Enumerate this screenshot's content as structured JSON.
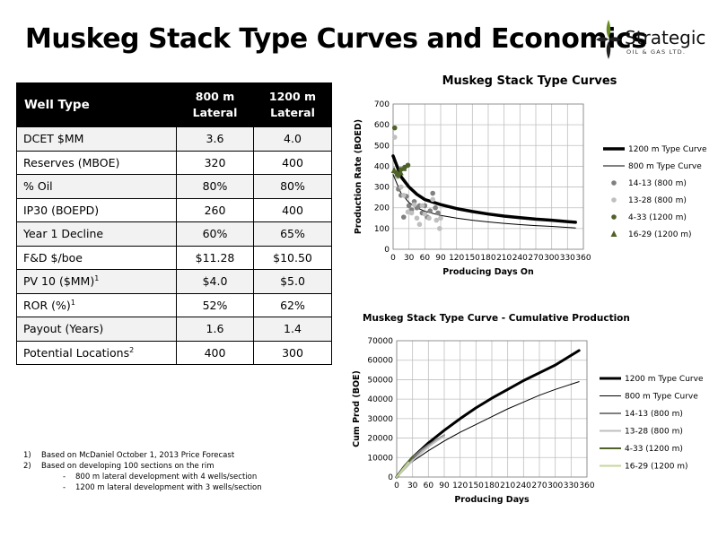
{
  "page_title": "Muskeg Stack Type Curves and Economics",
  "logo": {
    "word": "Strategic",
    "sub": "OIL & GAS LTD."
  },
  "table": {
    "headers": [
      {
        "line1": "Well Type",
        "line2": ""
      },
      {
        "line1": "800 m",
        "line2": "Lateral"
      },
      {
        "line1": "1200 m",
        "line2": "Lateral"
      }
    ],
    "rows": [
      {
        "label": "DCET $MM",
        "sup": "",
        "v800": "3.6",
        "v1200": "4.0"
      },
      {
        "label": "Reserves (MBOE)",
        "sup": "",
        "v800": "320",
        "v1200": "400"
      },
      {
        "label": "% Oil",
        "sup": "",
        "v800": "80%",
        "v1200": "80%"
      },
      {
        "label": "IP30 (BOEPD)",
        "sup": "",
        "v800": "260",
        "v1200": "400"
      },
      {
        "label": "Year 1 Decline",
        "sup": "",
        "v800": "60%",
        "v1200": "65%"
      },
      {
        "label": "F&D $/boe",
        "sup": "",
        "v800": "$11.28",
        "v1200": "$10.50"
      },
      {
        "label": "PV 10 ($MM)",
        "sup": "1",
        "v800": "$4.0",
        "v1200": "$5.0"
      },
      {
        "label": "ROR (%)",
        "sup": "1",
        "v800": "52%",
        "v1200": "62%"
      },
      {
        "label": "Payout (Years)",
        "sup": "",
        "v800": "1.6",
        "v1200": "1.4"
      },
      {
        "label": "Potential Locations",
        "sup": "2",
        "v800": "400",
        "v1200": "300"
      }
    ]
  },
  "notes": {
    "n1_num": "1)",
    "n1": "Based on McDaniel October 1, 2013 Price Forecast",
    "n2_num": "2)",
    "n2": "Based on developing 100 sections on the rim",
    "s_dash": "-",
    "s1": "800 m lateral development with 4 wells/section",
    "s2": "1200 m lateral development with 3 wells/section"
  },
  "chart_data": [
    {
      "type": "scatter",
      "title": "Muskeg Stack Type Curves",
      "xlabel": "Producing Days On",
      "ylabel": "Production Rate (BOED)",
      "xlim": [
        0,
        360
      ],
      "ylim": [
        0,
        700
      ],
      "xticks": [
        0,
        30,
        60,
        90,
        120,
        150,
        180,
        210,
        240,
        270,
        300,
        330,
        360
      ],
      "yticks": [
        0,
        100,
        200,
        300,
        400,
        500,
        600,
        700
      ],
      "grid": true,
      "legend": "right",
      "series": [
        {
          "name": "1200 m Type Curve",
          "kind": "line",
          "color": "#000000",
          "width": 3.5,
          "points": [
            [
              0,
              450
            ],
            [
              15,
              350
            ],
            [
              30,
              300
            ],
            [
              45,
              265
            ],
            [
              60,
              240
            ],
            [
              90,
              215
            ],
            [
              120,
              196
            ],
            [
              150,
              182
            ],
            [
              180,
              170
            ],
            [
              210,
              160
            ],
            [
              240,
              152
            ],
            [
              270,
              145
            ],
            [
              300,
              140
            ],
            [
              345,
              130
            ]
          ]
        },
        {
          "name": "800 m Type Curve",
          "kind": "line",
          "color": "#000000",
          "width": 1,
          "points": [
            [
              0,
              360
            ],
            [
              15,
              270
            ],
            [
              30,
              225
            ],
            [
              45,
              200
            ],
            [
              60,
              183
            ],
            [
              90,
              163
            ],
            [
              120,
              150
            ],
            [
              150,
              140
            ],
            [
              180,
              132
            ],
            [
              210,
              125
            ],
            [
              240,
              119
            ],
            [
              270,
              114
            ],
            [
              300,
              110
            ],
            [
              345,
              103
            ]
          ]
        },
        {
          "name": "14-13 (800 m)",
          "kind": "marker",
          "marker": "circle",
          "color": "#808080",
          "points": [
            [
              10,
              290
            ],
            [
              15,
              260
            ],
            [
              20,
              155
            ],
            [
              25,
              255
            ],
            [
              30,
              210
            ],
            [
              35,
              190
            ],
            [
              40,
              230
            ],
            [
              45,
              200
            ],
            [
              50,
              210
            ],
            [
              55,
              175
            ],
            [
              60,
              210
            ],
            [
              65,
              155
            ],
            [
              70,
              185
            ],
            [
              75,
              270
            ],
            [
              80,
              200
            ],
            [
              85,
              175
            ]
          ]
        },
        {
          "name": "13-28 (800 m)",
          "kind": "marker",
          "marker": "circle",
          "color": "#bfbfbf",
          "points": [
            [
              3,
              540
            ],
            [
              8,
              350
            ],
            [
              15,
              300
            ],
            [
              20,
              260
            ],
            [
              28,
              180
            ],
            [
              35,
              175
            ],
            [
              40,
              215
            ],
            [
              45,
              150
            ],
            [
              50,
              120
            ],
            [
              55,
              210
            ],
            [
              60,
              170
            ],
            [
              68,
              150
            ],
            [
              75,
              240
            ],
            [
              82,
              140
            ],
            [
              88,
              100
            ],
            [
              90,
              150
            ]
          ]
        },
        {
          "name": "4-33 (1200 m)",
          "kind": "marker",
          "marker": "circle",
          "color": "#4f6228",
          "points": [
            [
              3,
              585
            ],
            [
              6,
              370
            ],
            [
              10,
              355
            ],
            [
              15,
              385
            ],
            [
              22,
              395
            ],
            [
              28,
              405
            ]
          ]
        },
        {
          "name": "16-29 (1200 m)",
          "kind": "marker",
          "marker": "triangle",
          "color": "#4f6228",
          "points": [
            [
              2,
              380
            ],
            [
              8,
              365
            ],
            [
              14,
              370
            ],
            [
              20,
              390
            ]
          ]
        }
      ]
    },
    {
      "type": "line",
      "title": "Muskeg Stack Type Curve - Cumulative Production",
      "xlabel": "Producing Days",
      "ylabel": "Cum Prod (BOE)",
      "xlim": [
        0,
        360
      ],
      "ylim": [
        0,
        70000
      ],
      "xticks": [
        0,
        30,
        60,
        90,
        120,
        150,
        180,
        210,
        240,
        270,
        300,
        330,
        360
      ],
      "yticks": [
        0,
        10000,
        20000,
        30000,
        40000,
        50000,
        60000,
        70000
      ],
      "grid": true,
      "legend": "right",
      "series": [
        {
          "name": "1200 m Type Curve",
          "color": "#000000",
          "width": 3,
          "points": [
            [
              0,
              0
            ],
            [
              15,
              5500
            ],
            [
              30,
              10000
            ],
            [
              60,
              17500
            ],
            [
              90,
              24000
            ],
            [
              120,
              30000
            ],
            [
              150,
              35500
            ],
            [
              180,
              40500
            ],
            [
              210,
              45000
            ],
            [
              240,
              49500
            ],
            [
              270,
              53500
            ],
            [
              300,
              57500
            ],
            [
              345,
              65000
            ]
          ]
        },
        {
          "name": "800 m Type Curve",
          "color": "#000000",
          "width": 1,
          "points": [
            [
              0,
              0
            ],
            [
              15,
              4500
            ],
            [
              30,
              8000
            ],
            [
              60,
              13500
            ],
            [
              90,
              18500
            ],
            [
              120,
              23000
            ],
            [
              150,
              27000
            ],
            [
              180,
              31000
            ],
            [
              210,
              35000
            ],
            [
              240,
              38500
            ],
            [
              270,
              42000
            ],
            [
              300,
              45000
            ],
            [
              345,
              49000
            ]
          ]
        },
        {
          "name": "14-13 (800 m)",
          "color": "#808080",
          "width": 2,
          "points": [
            [
              0,
              0
            ],
            [
              10,
              3000
            ],
            [
              20,
              6500
            ],
            [
              30,
              10000
            ],
            [
              45,
              13500
            ],
            [
              60,
              16500
            ],
            [
              75,
              19000
            ],
            [
              90,
              21500
            ]
          ]
        },
        {
          "name": "13-28 (800 m)",
          "color": "#bfbfbf",
          "width": 2,
          "points": [
            [
              0,
              0
            ],
            [
              10,
              2800
            ],
            [
              20,
              5500
            ],
            [
              30,
              8500
            ],
            [
              45,
              12000
            ],
            [
              60,
              15500
            ],
            [
              75,
              18500
            ],
            [
              90,
              21000
            ]
          ]
        },
        {
          "name": "4-33 (1200 m)",
          "color": "#4f6228",
          "width": 2,
          "points": [
            [
              0,
              0
            ],
            [
              8,
              3000
            ],
            [
              16,
              6000
            ],
            [
              24,
              8500
            ],
            [
              30,
              10500
            ]
          ]
        },
        {
          "name": "16-29 (1200 m)",
          "color": "#c4d79b",
          "width": 2,
          "points": [
            [
              0,
              0
            ],
            [
              8,
              2800
            ],
            [
              16,
              5500
            ],
            [
              22,
              7500
            ]
          ]
        }
      ]
    }
  ]
}
